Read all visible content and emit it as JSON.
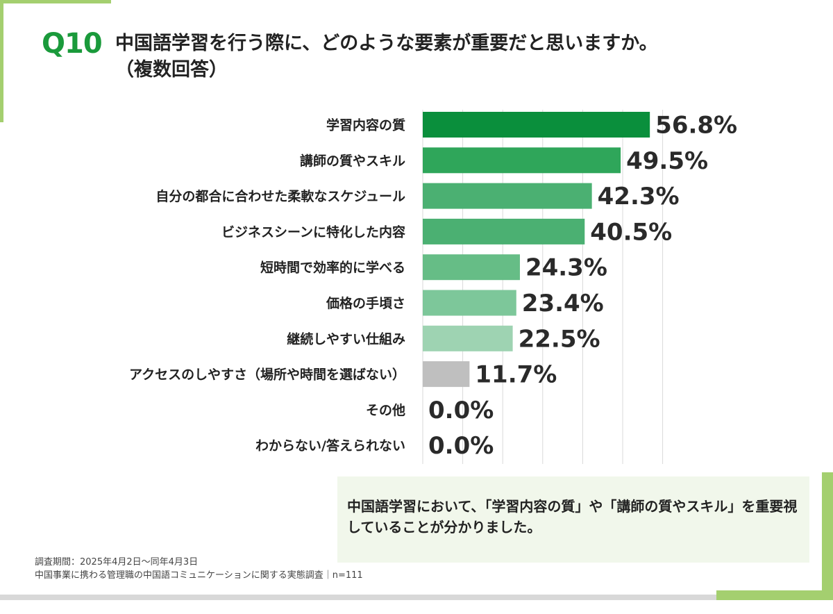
{
  "question": {
    "number": "Q10",
    "title_line1": "中国語学習を行う際に、どのような要素が重要だと思いますか。",
    "title_line2": "（複数回答）"
  },
  "chart_data": {
    "type": "bar",
    "orientation": "horizontal",
    "categories": [
      "学習内容の質",
      "講師の質やスキル",
      "自分の都合に合わせた柔軟なスケジュール",
      "ビジネスシーンに特化した内容",
      "短時間で効率的に学べる",
      "価格の手頃さ",
      "継続しやすい仕組み",
      "アクセスのしやすさ（場所や時間を選ばない）",
      "その他",
      "わからない/答えられない"
    ],
    "values": [
      56.8,
      49.5,
      42.3,
      40.5,
      24.3,
      23.4,
      22.5,
      11.7,
      0.0,
      0.0
    ],
    "value_labels": [
      "56.8%",
      "49.5%",
      "42.3%",
      "40.5%",
      "24.3%",
      "23.4%",
      "22.5%",
      "11.7%",
      "0.0%",
      "0.0%"
    ],
    "bar_colors": [
      "#0a8f3c",
      "#2fa65a",
      "#4bb072",
      "#4bb072",
      "#66bd86",
      "#7dc79a",
      "#9ed3b2",
      "#bfbfbf",
      "#bfbfbf",
      "#bfbfbf"
    ],
    "xlim": [
      0,
      60
    ],
    "grid": true,
    "legend": "none"
  },
  "note": "中国語学習において、「学習内容の質」や「講師の質やスキル」を重要視していることが分かりました。",
  "footer": {
    "period": "調査期間：2025年4月2日～同年4月3日",
    "survey": "中国事業に携わる管理職の中国語コミュニケーションに関する実態調査｜n=111"
  }
}
